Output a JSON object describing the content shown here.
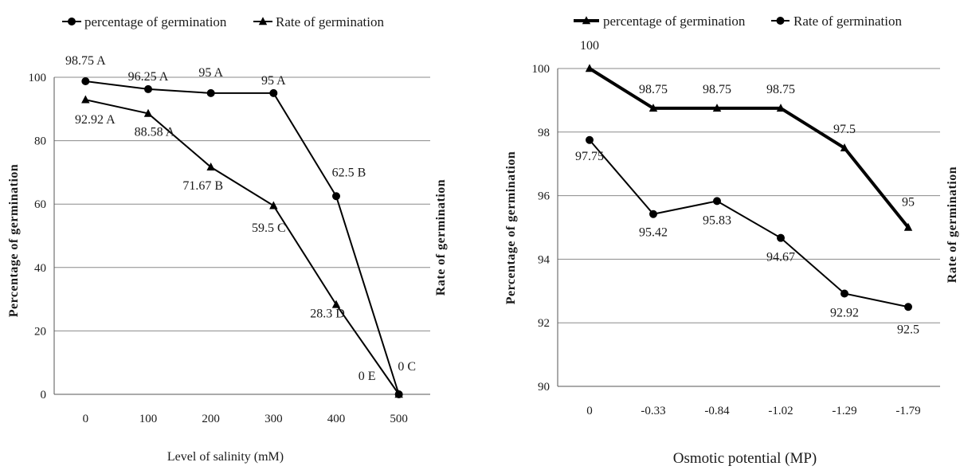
{
  "chart_data": [
    {
      "type": "line",
      "title": "",
      "xlabel": "Level of salinity (mM)",
      "ylabel": "Percentage of germination",
      "y2label": "Rate of germination",
      "categories": [
        "0",
        "100",
        "200",
        "300",
        "400",
        "500"
      ],
      "ylim": [
        0,
        100
      ],
      "yticks": [
        "0",
        "20",
        "40",
        "60",
        "80",
        "100"
      ],
      "grid": "horizontal",
      "legend_position": "top",
      "series": [
        {
          "name": "percentage of germination",
          "marker": "circle",
          "values": [
            98.75,
            96.25,
            95,
            95,
            62.5,
            0
          ],
          "labels": [
            "98.75 A",
            "96.25 A",
            "95 A",
            "95 A",
            "62.5 B",
            "0 C"
          ]
        },
        {
          "name": "Rate of germination",
          "marker": "triangle",
          "values": [
            92.92,
            88.58,
            71.67,
            59.5,
            28.3,
            0
          ],
          "labels": [
            "92.92 A",
            "88.58 A",
            "71.67 B",
            "59.5 C",
            "28.3 D",
            "0  E"
          ]
        }
      ]
    },
    {
      "type": "line",
      "title": "",
      "xlabel": "Osmotic potential (MP)",
      "ylabel": "Percentage of germination",
      "y2label": "Rate of germination",
      "categories": [
        "0",
        "-0.33",
        "-0.84",
        "-1.02",
        "-1.29",
        "-1.79"
      ],
      "ylim": [
        90,
        100
      ],
      "yticks": [
        "90",
        "92",
        "94",
        "96",
        "98",
        "100"
      ],
      "grid": "horizontal",
      "legend_position": "top",
      "series": [
        {
          "name": "percentage of germination",
          "marker": "triangle",
          "values": [
            100,
            98.75,
            98.75,
            98.75,
            97.5,
            95
          ],
          "labels": [
            "100",
            "98.75",
            "98.75",
            "98.75",
            "97.5",
            "95"
          ]
        },
        {
          "name": "Rate of germination",
          "marker": "circle",
          "values": [
            97.75,
            95.42,
            95.83,
            94.67,
            92.92,
            92.5
          ],
          "labels": [
            "97.75",
            "95.42",
            "95.83",
            "94.67",
            "92.92",
            "92.5"
          ]
        }
      ]
    }
  ]
}
